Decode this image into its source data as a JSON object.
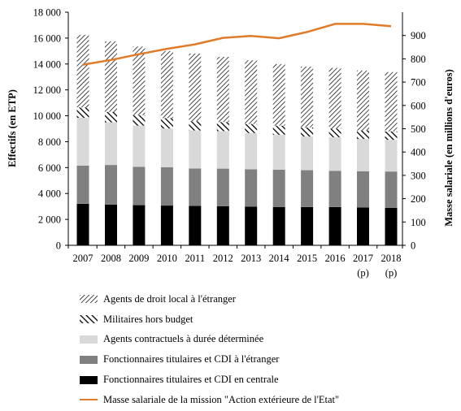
{
  "chart_data": {
    "type": "bar",
    "stacked": true,
    "categories": [
      "2007",
      "2008",
      "2009",
      "2010",
      "2011",
      "2012",
      "2013",
      "2014",
      "2015",
      "2016",
      "2017",
      "2018"
    ],
    "category_sublabels": [
      "",
      "",
      "",
      "",
      "",
      "",
      "",
      "",
      "",
      "",
      "(p)",
      "(p)"
    ],
    "ylabel_left": "Effectifs (en ETP)",
    "ylabel_right": "Masse salariale (en millions d'euros)",
    "ylim_left": [
      0,
      18000
    ],
    "ylim_right": [
      0,
      1000
    ],
    "left_ticks": [
      "0",
      "2 000",
      "4 000",
      "6 000",
      "8 000",
      "10 000",
      "12 000",
      "14 000",
      "16 000",
      "18 000"
    ],
    "left_tick_values": [
      0,
      2000,
      4000,
      6000,
      8000,
      10000,
      12000,
      14000,
      16000,
      18000
    ],
    "right_ticks": [
      "0",
      "100",
      "200",
      "300",
      "400",
      "500",
      "600",
      "700",
      "800",
      "900"
    ],
    "right_tick_values": [
      0,
      100,
      200,
      300,
      400,
      500,
      600,
      700,
      800,
      900
    ],
    "grid": false,
    "legend_position": "bottom",
    "series": [
      {
        "name": "Fonctionnaires titulaires et CDI en centrale",
        "color": "#000000",
        "pattern": "solid",
        "values": [
          3200,
          3150,
          3100,
          3070,
          3050,
          3020,
          2990,
          2960,
          2950,
          2950,
          2920,
          2900
        ]
      },
      {
        "name": "Fonctionnaires titulaires et CDI à l'étranger",
        "color": "#808080",
        "pattern": "solid",
        "values": [
          2950,
          3050,
          2950,
          2950,
          2880,
          2900,
          2880,
          2880,
          2850,
          2800,
          2800,
          2800
        ]
      },
      {
        "name": "Agents contractuels à durée déterminée",
        "color": "#d9d9d9",
        "pattern": "solid",
        "values": [
          3700,
          3300,
          3200,
          3000,
          2950,
          2900,
          2800,
          2700,
          2600,
          2600,
          2500,
          2450
        ]
      },
      {
        "name": "Militaires hors budget",
        "color": "#000000",
        "pattern": "diagonal-thick",
        "values": [
          800,
          800,
          800,
          800,
          700,
          700,
          700,
          700,
          700,
          650,
          650,
          650
        ]
      },
      {
        "name": "Agents de droit local à l'étranger",
        "color": "#000000",
        "pattern": "diagonal-fine",
        "values": [
          5600,
          5450,
          5300,
          5180,
          5220,
          5030,
          4920,
          4760,
          4700,
          4700,
          4630,
          4580
        ]
      }
    ],
    "line_series": {
      "name": "Masse salariale de la mission \"Action extérieure de l'Etat\"",
      "color": "#e07b2a",
      "axis": "right",
      "values": [
        775,
        795,
        820,
        843,
        862,
        890,
        898,
        888,
        915,
        950,
        950,
        940
      ]
    }
  }
}
